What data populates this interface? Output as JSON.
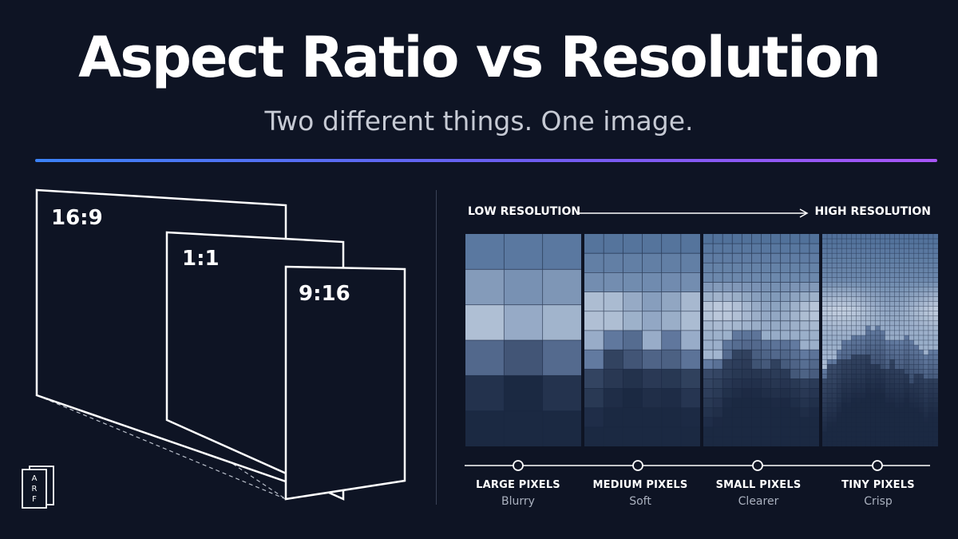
{
  "header": {
    "title": "Aspect Ratio vs Resolution",
    "subtitle": "Two different things. One image."
  },
  "aspect_ratios": [
    {
      "label": "16:9"
    },
    {
      "label": "1:1"
    },
    {
      "label": "9:16"
    }
  ],
  "logo": {
    "text": "ARF",
    "icon": "arf-logo"
  },
  "resolution": {
    "low_label": "LOW RESOLUTION",
    "high_label": "HIGH RESOLUTION",
    "panels": [
      {
        "grid": 3,
        "title": "LARGE PIXELS",
        "subtitle": "Blurry"
      },
      {
        "grid": 6,
        "title": "MEDIUM PIXELS",
        "subtitle": "Soft"
      },
      {
        "grid": 12,
        "title": "SMALL PIXELS",
        "subtitle": "Clearer"
      },
      {
        "grid": 24,
        "title": "TINY PIXELS",
        "subtitle": "Crisp"
      }
    ]
  },
  "colors": {
    "background": "#0e1424",
    "rule_start": "#3b82f6",
    "rule_end": "#a855f7",
    "sky": "#8ea9cc",
    "mountain": "#2a3f62"
  }
}
